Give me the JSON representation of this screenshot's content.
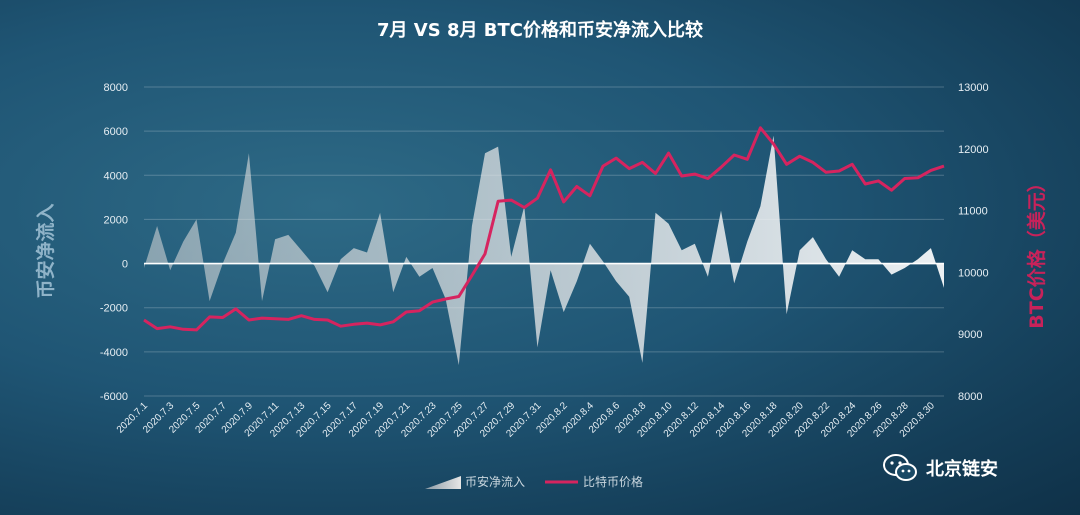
{
  "chart_data": {
    "type": "area+line",
    "title": "7月 VS 8月 BTC价格和币安净流入比较",
    "ylabel_left": "币安净流入",
    "ylabel_right": "BTC价格（美元）",
    "ylim_left": [
      -6000,
      8000
    ],
    "yticks_left": [
      -6000,
      -4000,
      -2000,
      0,
      2000,
      4000,
      6000,
      8000
    ],
    "ylim_right": [
      8000,
      13000
    ],
    "yticks_right": [
      8000,
      9000,
      10000,
      11000,
      12000,
      13000
    ],
    "grid": true,
    "legend_position": "bottom",
    "xtick_labels": [
      "2020.7.1",
      "2020.7.3",
      "2020.7.5",
      "2020.7.7",
      "2020.7.9",
      "2020.7.11",
      "2020.7.13",
      "2020.7.15",
      "2020.7.17",
      "2020.7.19",
      "2020.7.21",
      "2020.7.23",
      "2020.7.25",
      "2020.7.27",
      "2020.7.29",
      "2020.7.31",
      "2020.8.2",
      "2020.8.4",
      "2020.8.6",
      "2020.8.8",
      "2020.8.10",
      "2020.8.12",
      "2020.8.14",
      "2020.8.16",
      "2020.8.18",
      "2020.8.20",
      "2020.8.22",
      "2020.8.24",
      "2020.8.26",
      "2020.8.28",
      "2020.8.30"
    ],
    "series": [
      {
        "name": "币安净流入",
        "kind": "area",
        "color": "#d9d9d9",
        "values": [
          -200,
          1700,
          -300,
          1000,
          2000,
          -1700,
          0,
          1400,
          5000,
          -1700,
          1100,
          1300,
          600,
          -100,
          -1300,
          200,
          700,
          500,
          2300,
          -1300,
          300,
          -600,
          -200,
          -1600,
          -4600,
          1700,
          5000,
          5300,
          300,
          2600,
          -3800,
          -300,
          -2200,
          -800,
          900,
          100,
          -800,
          -1500,
          -4500,
          2300,
          1800,
          600,
          900,
          -600,
          2400,
          -900,
          1000,
          2600,
          5800,
          -2300,
          600,
          1200,
          200,
          -600,
          600,
          200,
          200,
          -500,
          -200,
          200,
          700,
          -1100
        ]
      },
      {
        "name": "比特币价格",
        "kind": "line",
        "color": "#d6245f",
        "values": [
          9230,
          9090,
          9120,
          9080,
          9070,
          9280,
          9270,
          9410,
          9230,
          9260,
          9250,
          9240,
          9300,
          9240,
          9230,
          9130,
          9160,
          9180,
          9150,
          9200,
          9360,
          9380,
          9520,
          9570,
          9610,
          9950,
          10300,
          11150,
          11170,
          11050,
          11200,
          11660,
          11140,
          11390,
          11240,
          11720,
          11850,
          11680,
          11780,
          11600,
          11930,
          11560,
          11590,
          11520,
          11700,
          11900,
          11830,
          12340,
          12080,
          11750,
          11880,
          11780,
          11620,
          11640,
          11750,
          11430,
          11480,
          11330,
          11520,
          11530,
          11650,
          11720
        ]
      }
    ]
  },
  "watermark": {
    "text": "北京链安",
    "icon": "wechat-icon"
  },
  "colors": {
    "area": "#d9d9d9",
    "line": "#d6245f",
    "zero_line": "#ffffff",
    "grid": "#ffffff"
  }
}
